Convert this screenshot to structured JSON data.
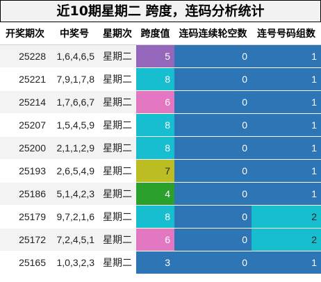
{
  "title": "近10期星期二 跨度，连码分析统计",
  "headers": [
    "开奖期次",
    "中奖号",
    "星期次",
    "跨度值",
    "连码连续轮空数",
    "连号号码组数"
  ],
  "colors": {
    "span_3": "#2e75b6",
    "span_4": "#2ca02c",
    "span_5": "#9467bd",
    "span_6": "#e377c2",
    "span_7": "#bcbd22",
    "span_8": "#17becf",
    "blank_bg": "#2e75b6",
    "group_1": "#2e75b6",
    "group_2": "#17becf"
  },
  "rows": [
    {
      "issue": "25228",
      "numbers": "1,6,4,6,5",
      "weekday": "星期二",
      "span": "5",
      "blank": "0",
      "groups": "1"
    },
    {
      "issue": "25221",
      "numbers": "7,9,1,7,8",
      "weekday": "星期二",
      "span": "8",
      "blank": "0",
      "groups": "1"
    },
    {
      "issue": "25214",
      "numbers": "1,7,6,6,7",
      "weekday": "星期二",
      "span": "6",
      "blank": "0",
      "groups": "1"
    },
    {
      "issue": "25207",
      "numbers": "1,5,4,5,9",
      "weekday": "星期二",
      "span": "8",
      "blank": "0",
      "groups": "1"
    },
    {
      "issue": "25200",
      "numbers": "2,1,1,2,9",
      "weekday": "星期二",
      "span": "8",
      "blank": "0",
      "groups": "1"
    },
    {
      "issue": "25193",
      "numbers": "2,6,5,4,9",
      "weekday": "星期二",
      "span": "7",
      "blank": "0",
      "groups": "1"
    },
    {
      "issue": "25186",
      "numbers": "5,1,4,2,3",
      "weekday": "星期二",
      "span": "4",
      "blank": "0",
      "groups": "1"
    },
    {
      "issue": "25179",
      "numbers": "9,7,2,1,6",
      "weekday": "星期二",
      "span": "8",
      "blank": "0",
      "groups": "2"
    },
    {
      "issue": "25172",
      "numbers": "7,2,4,5,1",
      "weekday": "星期二",
      "span": "6",
      "blank": "0",
      "groups": "2"
    },
    {
      "issue": "25165",
      "numbers": "1,0,3,2,3",
      "weekday": "星期二",
      "span": "3",
      "blank": "0",
      "groups": "1"
    }
  ]
}
